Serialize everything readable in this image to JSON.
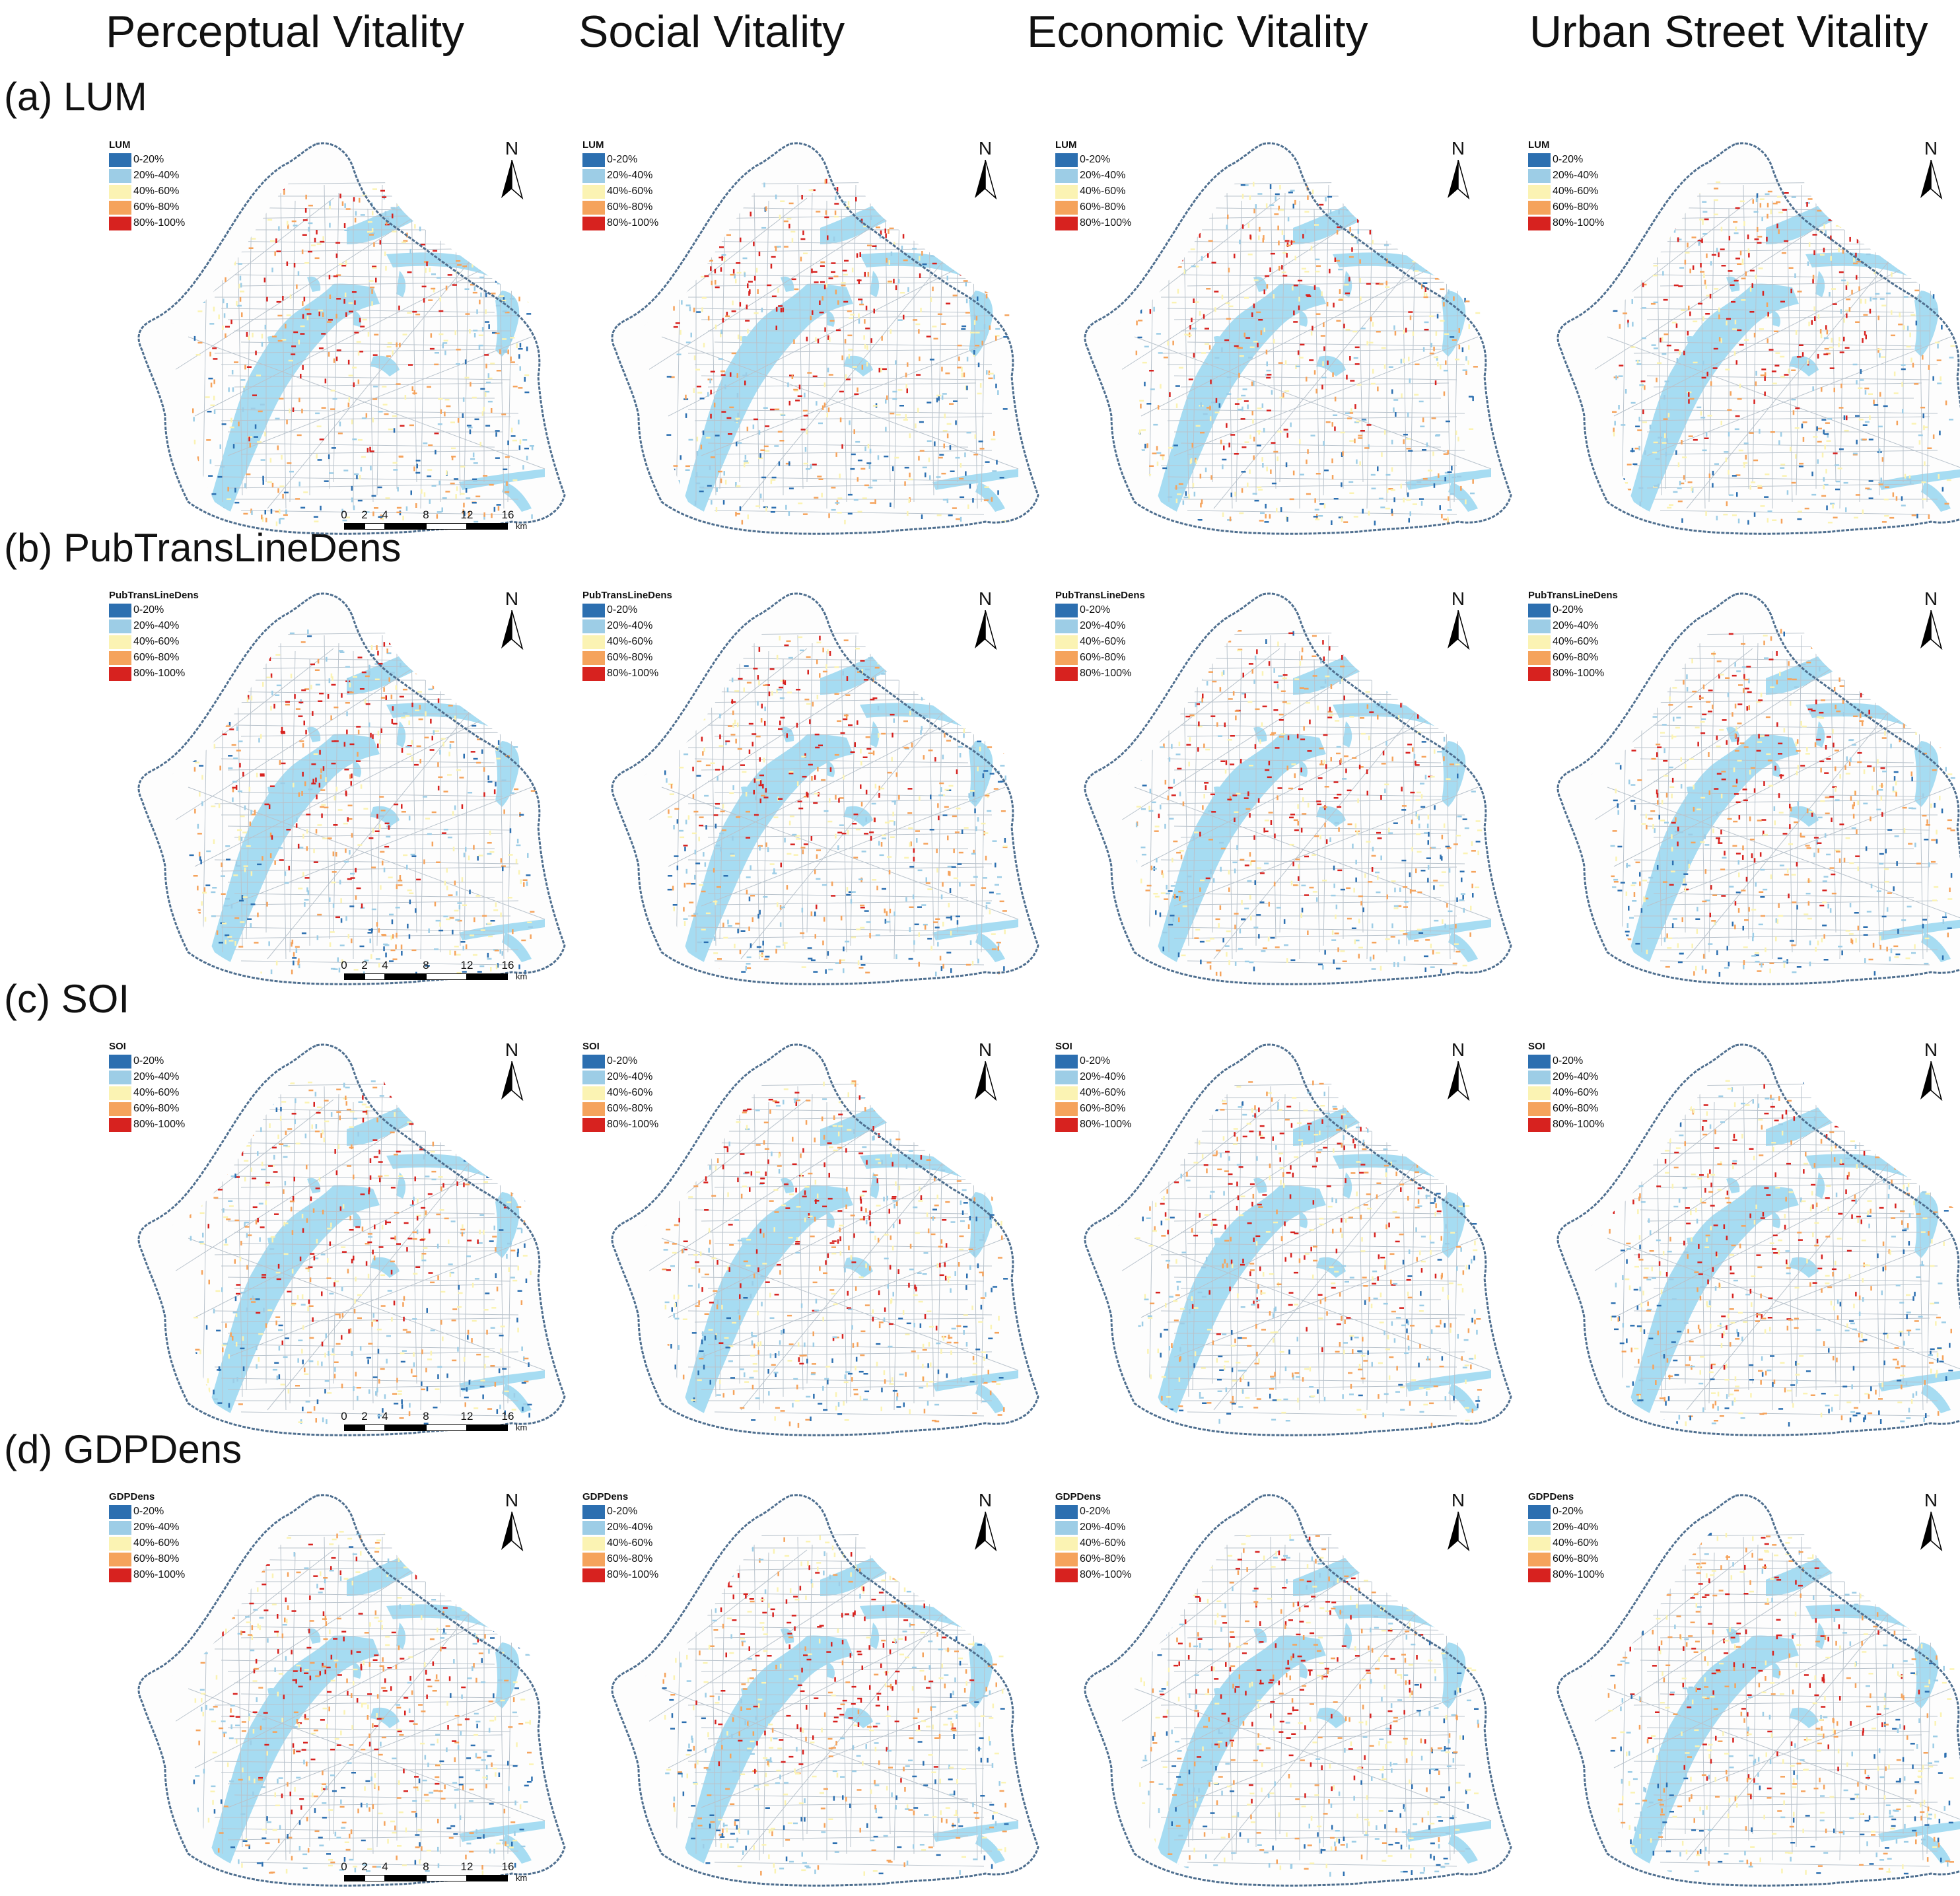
{
  "columns": [
    "Perceptual Vitality",
    "Social Vitality",
    "Economic Vitality",
    "Urban Street Vitality"
  ],
  "rows": [
    {
      "label": "(a) LUM",
      "legend_title": "LUM"
    },
    {
      "label": "(b) PubTransLineDens",
      "legend_title": "PubTransLineDens"
    },
    {
      "label": "(c) SOI",
      "legend_title": "SOI"
    },
    {
      "label": "(d) GDPDens",
      "legend_title": "GDPDens"
    }
  ],
  "legend_classes": [
    "0-20%",
    "20%-40%",
    "40%-60%",
    "60%-80%",
    "80%-100%"
  ],
  "colors": {
    "class_colors": [
      "#2c6fb0",
      "#9dcde6",
      "#fbf3b3",
      "#f5a35c",
      "#d7221f"
    ],
    "water": "#a6dcf2",
    "boundary": "#4f6f8f"
  },
  "north_label": "N",
  "scalebar": {
    "labels": [
      "0",
      "2",
      "4",
      "8",
      "12",
      "16"
    ],
    "unit": "km"
  }
}
